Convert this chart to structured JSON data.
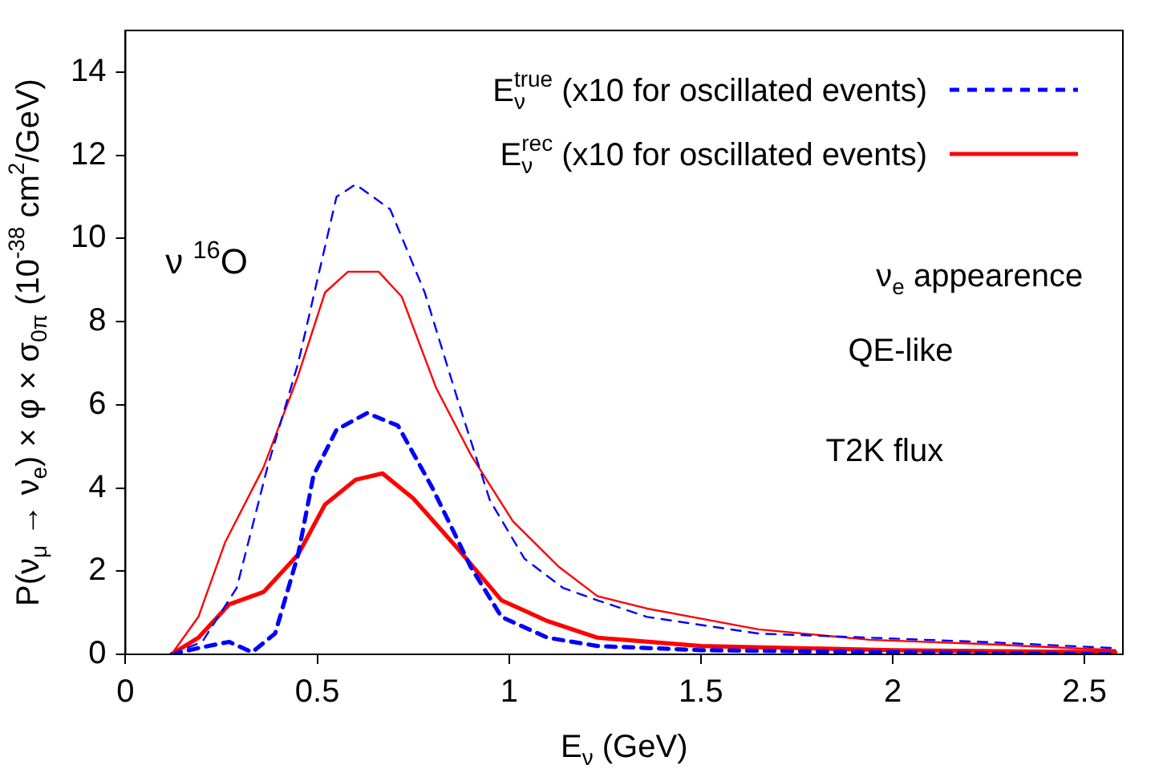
{
  "chart_data": {
    "type": "line",
    "xlabel": "E$_{ν}$ (GeV)",
    "ylabel": "P(ν$_{μ}$ → ν$_{e}$) × φ × σ$_{0π}$ (10$^{-38}$ cm$^{2}$/GeV)",
    "xlim": [
      0,
      2.6
    ],
    "xticks": [
      0,
      0.5,
      1,
      1.5,
      2,
      2.5
    ],
    "ylim": [
      0,
      15
    ],
    "yticks": [
      0,
      2,
      4,
      6,
      8,
      10,
      12,
      14
    ],
    "grid": false,
    "legend": "top right",
    "marker": "none",
    "annotations": [
      "ν $^{16}$O",
      "ν$_{e}$ appearence",
      "QE-like",
      "T2K flux"
    ],
    "series": [
      {
        "color": "#0000ff",
        "line_style": "dashed",
        "x": [
          0.12,
          0.2,
          0.29,
          0.37,
          0.45,
          0.5,
          0.55,
          0.6,
          0.69,
          0.78,
          0.87,
          0.95,
          1.04,
          1.14,
          1.23,
          1.36,
          1.65,
          1.94,
          2.23,
          2.58
        ],
        "values": [
          0,
          0.3,
          1.6,
          4.5,
          7,
          9,
          11,
          11.3,
          10.7,
          8.7,
          6,
          3.7,
          2.3,
          1.6,
          1.3,
          0.9,
          0.5,
          0.4,
          0.3,
          0.15
        ]
      },
      {
        "color": "#ff0000",
        "line_style": "solid",
        "x": [
          0.12,
          0.19,
          0.26,
          0.36,
          0.45,
          0.52,
          0.58,
          0.66,
          0.72,
          0.81,
          0.9,
          1.01,
          1.13,
          1.23,
          1.36,
          1.65,
          1.94,
          2.23,
          2.58
        ],
        "values": [
          0,
          0.9,
          2.7,
          4.5,
          6.7,
          8.7,
          9.2,
          9.2,
          8.6,
          6.4,
          4.8,
          3.2,
          2.1,
          1.4,
          1.1,
          0.6,
          0.35,
          0.25,
          0.1
        ]
      },
      {
        "name": "E$_{ν}$$^{true}$ (x10 for oscillated events)",
        "color": "#0000ff",
        "line_style": "dashed",
        "x": [
          0.12,
          0.19,
          0.27,
          0.33,
          0.39,
          0.45,
          0.49,
          0.55,
          0.63,
          0.71,
          0.8,
          0.9,
          0.98,
          1.1,
          1.23,
          1.5,
          2,
          2.58
        ],
        "values": [
          0,
          0.15,
          0.3,
          0.05,
          0.5,
          2.4,
          4.3,
          5.4,
          5.8,
          5.5,
          4,
          2.1,
          0.9,
          0.4,
          0.2,
          0.1,
          0.05,
          0
        ]
      },
      {
        "name": "E$_{ν}$$^{rec}$ (x10 for oscillated events)",
        "color": "#ff0000",
        "line_style": "solid",
        "x": [
          0.12,
          0.19,
          0.27,
          0.36,
          0.45,
          0.52,
          0.6,
          0.67,
          0.75,
          0.87,
          0.98,
          1.1,
          1.23,
          1.5,
          2,
          2.58
        ],
        "values": [
          0,
          0.4,
          1.2,
          1.5,
          2.4,
          3.6,
          4.2,
          4.35,
          3.75,
          2.5,
          1.3,
          0.8,
          0.4,
          0.2,
          0.1,
          0.05
        ]
      }
    ]
  }
}
